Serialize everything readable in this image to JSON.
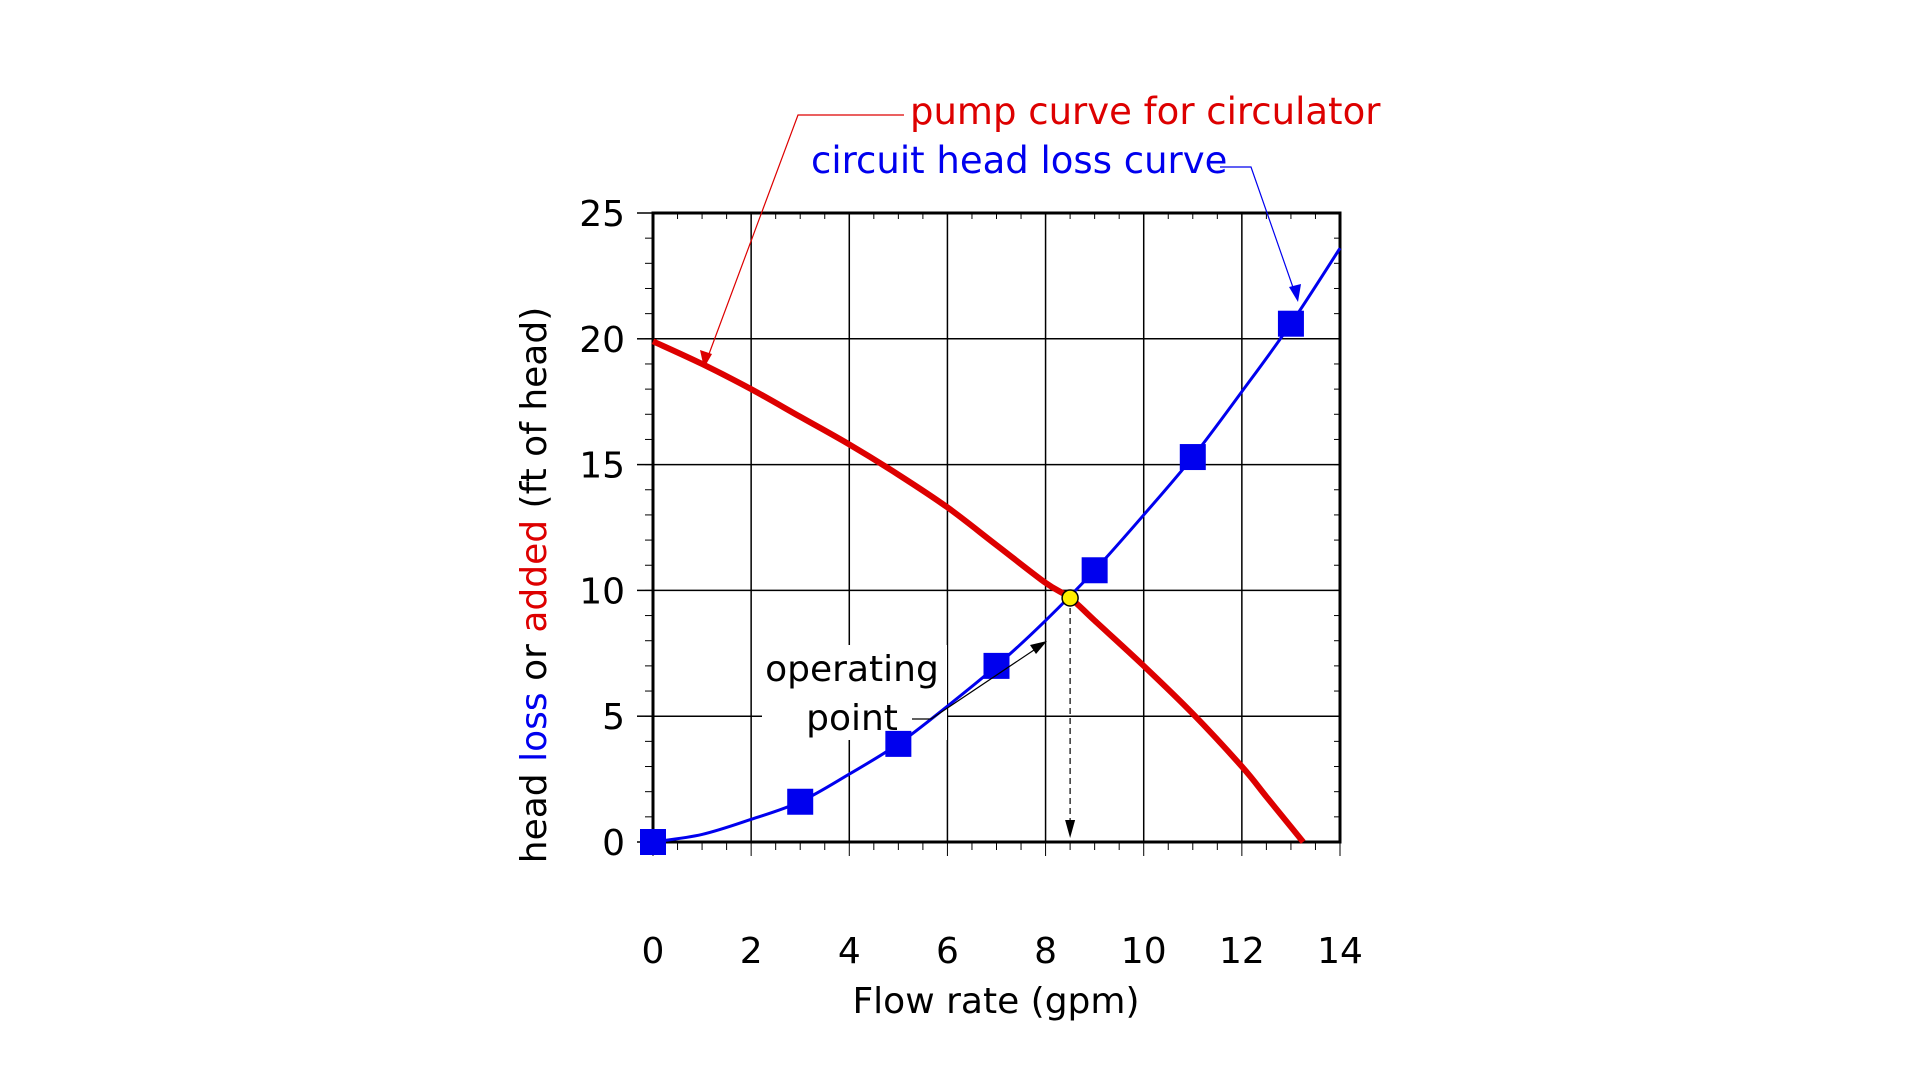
{
  "chart_data": {
    "type": "line",
    "title": "",
    "xlabel": "Flow rate (gpm)",
    "ylabel_parts": [
      {
        "text": "head ",
        "color": "#000000"
      },
      {
        "text": "loss",
        "color": "#0000ee"
      },
      {
        "text": " or ",
        "color": "#000000"
      },
      {
        "text": "added",
        "color": "#dd0000"
      },
      {
        "text": " (ft of head)",
        "color": "#000000"
      }
    ],
    "xlim": [
      0,
      14
    ],
    "ylim": [
      0,
      25
    ],
    "xticks": [
      0,
      2,
      4,
      6,
      8,
      10,
      12,
      14
    ],
    "yticks": [
      0,
      5,
      10,
      15,
      20,
      25
    ],
    "grid": true,
    "series": [
      {
        "name": "pump curve for circulator",
        "color": "#dd0000",
        "style": "thick-line",
        "x": [
          0,
          1,
          2,
          3,
          4,
          5,
          6,
          7,
          8,
          8.5,
          9,
          10,
          11,
          12,
          12.5,
          13,
          13.25
        ],
        "y": [
          19.9,
          19.0,
          18.0,
          16.9,
          15.8,
          14.6,
          13.3,
          11.8,
          10.3,
          9.7,
          8.8,
          7.0,
          5.1,
          3.0,
          1.8,
          0.6,
          0
        ]
      },
      {
        "name": "circuit head loss curve",
        "color": "#0000ee",
        "style": "line-with-square-markers",
        "x": [
          0,
          3,
          5,
          7,
          9,
          11,
          13
        ],
        "y": [
          0,
          1.6,
          3.9,
          7.0,
          10.8,
          15.3,
          20.6
        ],
        "curve_x": [
          0,
          1,
          2,
          3,
          4,
          5,
          6,
          7,
          8,
          9,
          10,
          11,
          12,
          13,
          14
        ],
        "curve_y": [
          0,
          0.3,
          0.9,
          1.6,
          2.7,
          3.9,
          5.4,
          7.0,
          8.8,
          10.8,
          13.0,
          15.3,
          17.9,
          20.6,
          23.6
        ]
      }
    ],
    "annotations": {
      "pump_label": "pump curve for circulator",
      "loss_label": "circuit head loss curve",
      "operating_point": {
        "label_line1": "operating",
        "label_line2": "point",
        "x": 8.5,
        "y": 9.7,
        "color": "#ffee00"
      }
    }
  }
}
